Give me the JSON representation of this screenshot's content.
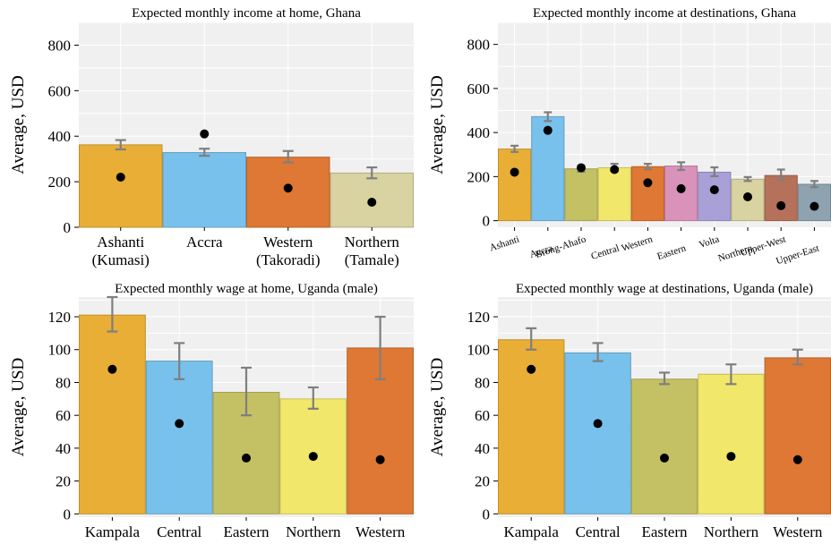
{
  "chart_data": [
    {
      "type": "bar",
      "title": "Expected monthly income at home, Ghana",
      "ylabel": "Average, USD",
      "ylim": [
        0,
        900
      ],
      "yticks": [
        0,
        200,
        400,
        600,
        800
      ],
      "grid": true,
      "categories": [
        "Ashanti\n(Kumasi)",
        "Accra",
        "Western\n(Takoradi)",
        "Northern\n(Tamale)"
      ],
      "values": [
        362,
        328,
        308,
        238
      ],
      "error_low": [
        342,
        314,
        285,
        215
      ],
      "error_high": [
        383,
        345,
        335,
        263
      ],
      "points": [
        220,
        410,
        172,
        110
      ],
      "colors": [
        "#e9ae35",
        "#78c1ec",
        "#de7834",
        "#d8d3a0"
      ],
      "label_size": "large",
      "label_rotate": 0
    },
    {
      "type": "bar",
      "title": "Expected monthly income at destinations, Ghana",
      "ylabel": "Average, USD",
      "ylim": [
        -30,
        900
      ],
      "yticks": [
        0,
        200,
        400,
        600,
        800
      ],
      "grid": true,
      "categories": [
        "Ashanti",
        "Accra",
        "Brong-Ahafo",
        "Central",
        "Western",
        "Eastern",
        "Volta",
        "Northern",
        "Upper-West",
        "Upper-East"
      ],
      "values": [
        325,
        472,
        235,
        240,
        245,
        248,
        220,
        188,
        205,
        165
      ],
      "error_low": [
        312,
        452,
        222,
        225,
        233,
        230,
        202,
        180,
        185,
        152
      ],
      "error_high": [
        340,
        492,
        250,
        258,
        258,
        265,
        242,
        198,
        232,
        180
      ],
      "points": [
        220,
        410,
        240,
        232,
        172,
        145,
        140,
        108,
        68,
        65
      ],
      "colors": [
        "#e9ae35",
        "#78c1ec",
        "#c4c164",
        "#f1e76a",
        "#de7834",
        "#d992b9",
        "#a9a0d8",
        "#d8d3a0",
        "#b5715a",
        "#8fa2af"
      ],
      "label_size": "small",
      "label_rotate": -18
    },
    {
      "type": "bar",
      "title": "Expected monthly wage at home, Uganda (male)",
      "ylabel": "Average, USD",
      "ylim": [
        -2,
        132
      ],
      "yticks": [
        0,
        20,
        40,
        60,
        80,
        100,
        120
      ],
      "grid": true,
      "categories": [
        "Kampala",
        "Central",
        "Eastern",
        "Northern",
        "Western"
      ],
      "values": [
        121,
        93,
        74,
        70,
        101
      ],
      "error_low": [
        111,
        82,
        60,
        64,
        82
      ],
      "error_high": [
        132,
        104,
        89,
        77,
        120
      ],
      "points": [
        88,
        55,
        34,
        35,
        33
      ],
      "colors": [
        "#e9ae35",
        "#78c1ec",
        "#c4c164",
        "#f1e76a",
        "#de7834"
      ],
      "label_size": "large",
      "label_rotate": 0
    },
    {
      "type": "bar",
      "title": "Expected monthly wage at destinations, Uganda (male)",
      "ylabel": "Average, USD",
      "ylim": [
        -2,
        132
      ],
      "yticks": [
        0,
        20,
        40,
        60,
        80,
        100,
        120
      ],
      "grid": true,
      "categories": [
        "Kampala",
        "Central",
        "Eastern",
        "Northern",
        "Western"
      ],
      "values": [
        106,
        98,
        82,
        85,
        95
      ],
      "error_low": [
        100,
        93,
        79,
        79,
        91
      ],
      "error_high": [
        113,
        104,
        86,
        91,
        100
      ],
      "points": [
        88,
        55,
        34,
        35,
        33
      ],
      "colors": [
        "#e9ae35",
        "#78c1ec",
        "#c4c164",
        "#f1e76a",
        "#de7834"
      ],
      "label_size": "large",
      "label_rotate": 0
    }
  ]
}
